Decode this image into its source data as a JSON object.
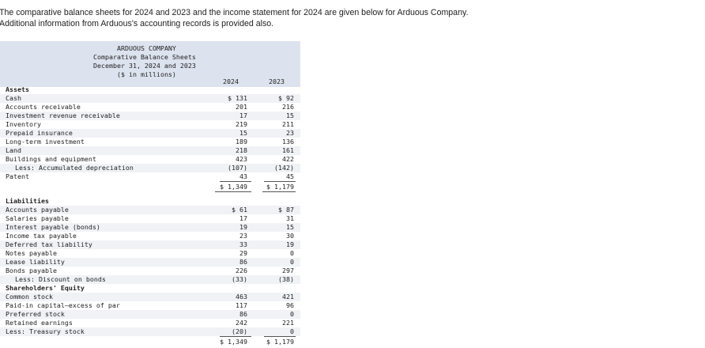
{
  "intro": {
    "line1": "The comparative balance sheets for 2024 and 2023 and the income statement for 2024 are given below for Arduous Company.",
    "line2": "Additional information from Arduous's accounting records is provided also."
  },
  "statement": {
    "company": "ARDUOUS COMPANY",
    "title": "Comparative Balance Sheets",
    "date": "December 31, 2024 and 2023",
    "units": "($ in millions)",
    "col_2024": "2024",
    "col_2023": "2023"
  },
  "assets": {
    "heading": "Assets",
    "rows": [
      {
        "label": "Cash",
        "v2024": "$ 131",
        "v2023": "$ 92"
      },
      {
        "label": "Accounts receivable",
        "v2024": "201",
        "v2023": "216"
      },
      {
        "label": "Investment revenue receivable",
        "v2024": "17",
        "v2023": "15"
      },
      {
        "label": "Inventory",
        "v2024": "219",
        "v2023": "211"
      },
      {
        "label": "Prepaid insurance",
        "v2024": "15",
        "v2023": "23"
      },
      {
        "label": "Long-term investment",
        "v2024": "189",
        "v2023": "136"
      },
      {
        "label": "Land",
        "v2024": "218",
        "v2023": "161"
      },
      {
        "label": "Buildings and equipment",
        "v2024": "423",
        "v2023": "422"
      },
      {
        "label": "Less: Accumulated depreciation",
        "v2024": "(107)",
        "v2023": "(142)"
      },
      {
        "label": "Patent",
        "v2024": "43",
        "v2023": "45"
      }
    ],
    "total_2024": "$ 1,349",
    "total_2023": "$ 1,179"
  },
  "liabilities": {
    "heading": "Liabilities",
    "rows": [
      {
        "label": "Accounts payable",
        "v2024": "$ 61",
        "v2023": "$ 87"
      },
      {
        "label": "Salaries payable",
        "v2024": "17",
        "v2023": "31"
      },
      {
        "label": "Interest payable (bonds)",
        "v2024": "19",
        "v2023": "15"
      },
      {
        "label": "Income tax payable",
        "v2024": "23",
        "v2023": "30"
      },
      {
        "label": "Deferred tax liability",
        "v2024": "33",
        "v2023": "19"
      },
      {
        "label": "Notes payable",
        "v2024": "29",
        "v2023": "0"
      },
      {
        "label": "Lease liability",
        "v2024": "86",
        "v2023": "0"
      },
      {
        "label": "Bonds payable",
        "v2024": "226",
        "v2023": "297"
      },
      {
        "label": "Less: Discount on bonds",
        "v2024": "(33)",
        "v2023": "(38)"
      }
    ]
  },
  "equity": {
    "heading": "Shareholders' Equity",
    "rows": [
      {
        "label": "Common stock",
        "v2024": "463",
        "v2023": "421"
      },
      {
        "label": "Paid-in capital—excess of par",
        "v2024": "117",
        "v2023": "96"
      },
      {
        "label": "Preferred stock",
        "v2024": "86",
        "v2023": "0"
      },
      {
        "label": "Retained earnings",
        "v2024": "242",
        "v2023": "221"
      },
      {
        "label": "Less: Treasury stock",
        "v2024": "(20)",
        "v2023": "0"
      }
    ],
    "total_2024": "$ 1,349",
    "total_2023": "$ 1,179"
  }
}
